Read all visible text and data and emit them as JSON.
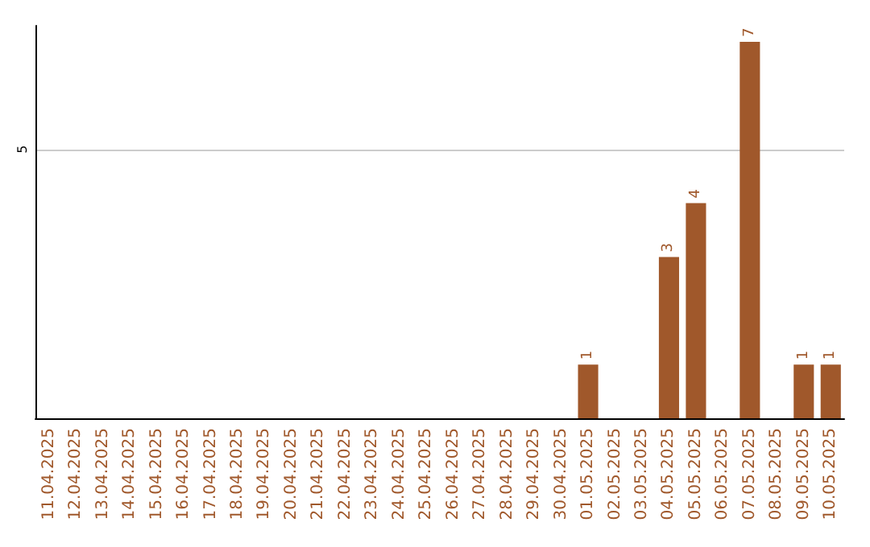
{
  "chart_data": {
    "type": "bar",
    "categories": [
      "11.04.2025",
      "12.04.2025",
      "13.04.2025",
      "14.04.2025",
      "15.04.2025",
      "16.04.2025",
      "17.04.2025",
      "18.04.2025",
      "19.04.2025",
      "20.04.2025",
      "21.04.2025",
      "22.04.2025",
      "23.04.2025",
      "24.04.2025",
      "25.04.2025",
      "26.04.2025",
      "27.04.2025",
      "28.04.2025",
      "29.04.2025",
      "30.04.2025",
      "01.05.2025",
      "02.05.2025",
      "03.05.2025",
      "04.05.2025",
      "05.05.2025",
      "06.05.2025",
      "07.05.2025",
      "08.05.2025",
      "09.05.2025",
      "10.05.2025"
    ],
    "values": [
      null,
      null,
      null,
      null,
      null,
      null,
      null,
      null,
      null,
      null,
      null,
      null,
      null,
      null,
      null,
      null,
      null,
      null,
      null,
      null,
      1,
      null,
      null,
      3,
      4,
      null,
      7,
      null,
      1,
      1
    ],
    "color": "#a0582b",
    "ylim": [
      0,
      7.3
    ],
    "yticks": [
      5
    ],
    "grid": "y",
    "data_labels": true
  }
}
